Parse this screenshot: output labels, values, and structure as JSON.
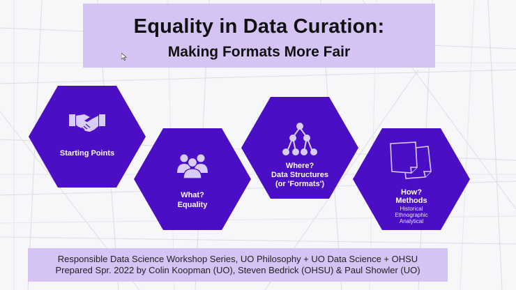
{
  "title": {
    "line1": "Equality in Data Curation:",
    "line2": "Making Formats More Fair"
  },
  "hexagons": [
    {
      "label": "Starting Points",
      "icon": "handshake-icon"
    },
    {
      "label_1": "What?",
      "label_2": "Equality",
      "icon": "people-group-icon"
    },
    {
      "label_1": "Where?",
      "label_2": "Data Structures",
      "label_3": "(or 'Formats')",
      "icon": "tree-hierarchy-icon"
    },
    {
      "label_1": "How?",
      "label_2": "Methods",
      "sub_1": "Historical",
      "sub_2": "Ethnographic",
      "sub_3": "Analytical",
      "icon": "documents-icon"
    }
  ],
  "footer": {
    "line1": "Responsible Data Science Workshop Series, UO Philosophy + UO Data Science + OHSU",
    "line2": "Prepared Spr. 2022 by Colin Koopman (UO), Steven Bedrick (OHSU) & Paul Showler (UO)"
  },
  "colors": {
    "hexagon": "#4a0ec4",
    "title_band": "#d4c3f3",
    "background": "#f7f7f9"
  }
}
